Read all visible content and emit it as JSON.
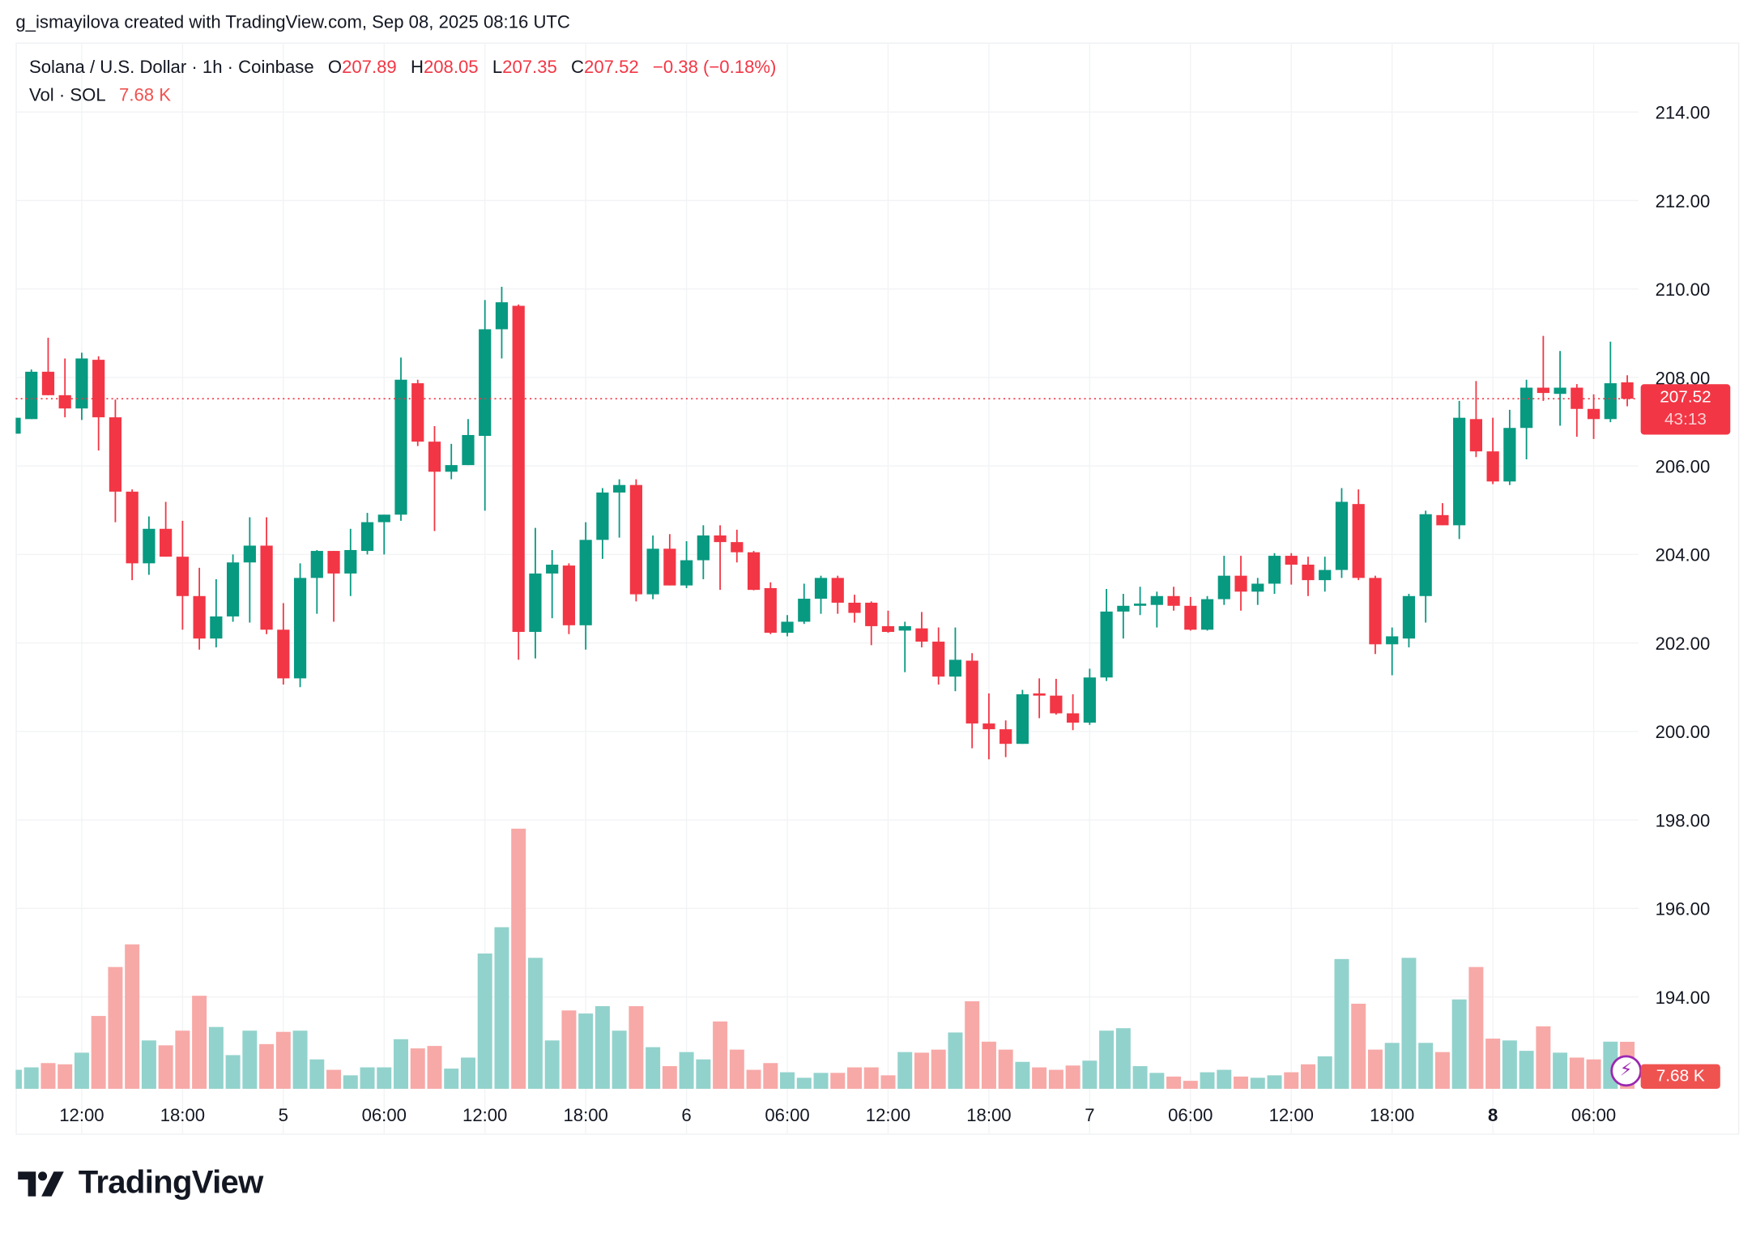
{
  "header": {
    "credit": "g_ismayilova created with TradingView.com, Sep 08, 2025 08:16 UTC"
  },
  "legend": {
    "symbol": "Solana / U.S. Dollar · 1h · Coinbase",
    "o_label": "O",
    "o": "207.89",
    "h_label": "H",
    "h": "208.05",
    "l_label": "L",
    "l": "207.35",
    "c_label": "C",
    "c": "207.52",
    "change": "−0.38 (−0.18%)",
    "vol_label": "Vol · SOL",
    "vol": "7.68 K"
  },
  "price_badge": {
    "price": "207.52",
    "countdown": "43:13"
  },
  "volume_badge": {
    "value": "7.68 K",
    "icon": "lightning-bolt-icon"
  },
  "logo": {
    "text": "TradingView"
  },
  "colors": {
    "up": "#089981",
    "down": "#f23645",
    "vol_up": "#92d2cc",
    "vol_down": "#f7a9a7",
    "last_price_line": "#f23645"
  },
  "chart_data": {
    "type": "candlestick",
    "title": "Solana / U.S. Dollar · 1h · Coinbase",
    "ylim": [
      193,
      215.5
    ],
    "y_ticks": [
      "214.00",
      "212.00",
      "210.00",
      "208.00",
      "206.00",
      "204.00",
      "202.00",
      "200.00",
      "198.00",
      "196.00",
      "194.00"
    ],
    "x_ticks": [
      {
        "label": "12:00",
        "bar": 4
      },
      {
        "label": "18:00",
        "bar": 10
      },
      {
        "label": "5",
        "bar": 16,
        "bold": false
      },
      {
        "label": "06:00",
        "bar": 22
      },
      {
        "label": "12:00",
        "bar": 28
      },
      {
        "label": "18:00",
        "bar": 34
      },
      {
        "label": "6",
        "bar": 40
      },
      {
        "label": "06:00",
        "bar": 46
      },
      {
        "label": "12:00",
        "bar": 52
      },
      {
        "label": "18:00",
        "bar": 58
      },
      {
        "label": "7",
        "bar": 64
      },
      {
        "label": "06:00",
        "bar": 70
      },
      {
        "label": "12:00",
        "bar": 76
      },
      {
        "label": "18:00",
        "bar": 82
      },
      {
        "label": "8",
        "bar": 88,
        "bold": true
      },
      {
        "label": "06:00",
        "bar": 94
      }
    ],
    "last_price": 207.52,
    "volume_unit": "K SOL",
    "candles_ohlc": [
      [
        206.73,
        207.1,
        206.7,
        207.09
      ],
      [
        207.06,
        208.18,
        207.06,
        208.13
      ],
      [
        208.13,
        208.9,
        207.6,
        207.6
      ],
      [
        207.6,
        208.43,
        207.1,
        207.3
      ],
      [
        207.3,
        208.56,
        207.04,
        208.43
      ],
      [
        208.4,
        208.48,
        206.35,
        207.1
      ],
      [
        207.1,
        207.5,
        204.73,
        205.42
      ],
      [
        205.42,
        205.47,
        203.42,
        203.8
      ],
      [
        203.8,
        204.86,
        203.54,
        204.58
      ],
      [
        204.58,
        205.19,
        203.95,
        203.95
      ],
      [
        203.95,
        204.76,
        202.3,
        203.06
      ],
      [
        203.06,
        203.7,
        201.85,
        202.1
      ],
      [
        202.1,
        203.44,
        201.9,
        202.6
      ],
      [
        202.6,
        204.0,
        202.48,
        203.82
      ],
      [
        203.82,
        204.84,
        202.46,
        204.2
      ],
      [
        204.2,
        204.84,
        202.2,
        202.3
      ],
      [
        202.3,
        202.9,
        201.06,
        201.2
      ],
      [
        201.2,
        203.8,
        201.0,
        203.47
      ],
      [
        203.47,
        204.1,
        202.66,
        204.08
      ],
      [
        204.08,
        204.08,
        202.48,
        203.57
      ],
      [
        203.57,
        204.58,
        203.06,
        204.1
      ],
      [
        204.08,
        204.94,
        204.0,
        204.73
      ],
      [
        204.73,
        204.9,
        204.0,
        204.9
      ],
      [
        204.9,
        208.45,
        204.76,
        207.95
      ],
      [
        207.87,
        207.95,
        206.45,
        206.55
      ],
      [
        206.55,
        206.9,
        204.53,
        205.87
      ],
      [
        205.87,
        206.5,
        205.7,
        206.02
      ],
      [
        206.02,
        207.06,
        206.02,
        206.7
      ],
      [
        206.68,
        209.75,
        204.99,
        209.09
      ],
      [
        209.09,
        210.05,
        208.43,
        209.7
      ],
      [
        209.62,
        209.65,
        201.62,
        202.25
      ],
      [
        202.25,
        204.6,
        201.65,
        203.57
      ],
      [
        203.57,
        204.1,
        202.56,
        203.77
      ],
      [
        203.75,
        203.8,
        202.2,
        202.4
      ],
      [
        202.4,
        204.73,
        201.85,
        204.33
      ],
      [
        204.33,
        205.5,
        203.9,
        205.4
      ],
      [
        205.4,
        205.7,
        204.38,
        205.57
      ],
      [
        205.57,
        205.7,
        202.94,
        203.1
      ],
      [
        203.1,
        204.43,
        202.99,
        204.13
      ],
      [
        204.13,
        204.46,
        203.3,
        203.3
      ],
      [
        203.3,
        204.3,
        203.24,
        203.87
      ],
      [
        203.87,
        204.66,
        203.44,
        204.43
      ],
      [
        204.43,
        204.66,
        203.2,
        204.28
      ],
      [
        204.28,
        204.56,
        203.82,
        204.05
      ],
      [
        204.05,
        204.08,
        203.19,
        203.2
      ],
      [
        203.24,
        203.37,
        202.2,
        202.23
      ],
      [
        202.23,
        202.63,
        202.15,
        202.48
      ],
      [
        202.48,
        203.34,
        202.43,
        203.0
      ],
      [
        203.0,
        203.52,
        202.66,
        203.47
      ],
      [
        203.47,
        203.52,
        202.66,
        202.91
      ],
      [
        202.91,
        203.09,
        202.46,
        202.68
      ],
      [
        202.91,
        202.94,
        201.95,
        202.38
      ],
      [
        202.38,
        202.73,
        202.23,
        202.25
      ],
      [
        202.28,
        202.48,
        201.34,
        202.38
      ],
      [
        202.33,
        202.7,
        201.9,
        202.03
      ],
      [
        202.03,
        202.35,
        201.06,
        201.24
      ],
      [
        201.24,
        202.35,
        200.91,
        201.62
      ],
      [
        201.6,
        201.77,
        199.62,
        200.18
      ],
      [
        200.18,
        200.86,
        199.37,
        200.05
      ],
      [
        200.05,
        200.25,
        199.42,
        199.72
      ],
      [
        199.72,
        200.94,
        199.72,
        200.84
      ],
      [
        200.86,
        201.2,
        200.3,
        200.81
      ],
      [
        200.81,
        201.19,
        200.38,
        200.41
      ],
      [
        200.41,
        200.84,
        200.03,
        200.2
      ],
      [
        200.2,
        201.42,
        200.15,
        201.22
      ],
      [
        201.22,
        203.22,
        201.14,
        202.71
      ],
      [
        202.71,
        203.11,
        202.1,
        202.84
      ],
      [
        202.84,
        203.27,
        202.63,
        202.89
      ],
      [
        202.86,
        203.16,
        202.35,
        203.06
      ],
      [
        203.06,
        203.27,
        202.73,
        202.84
      ],
      [
        202.84,
        203.04,
        202.28,
        202.3
      ],
      [
        202.3,
        203.06,
        202.28,
        202.99
      ],
      [
        202.99,
        203.97,
        202.86,
        203.52
      ],
      [
        203.52,
        203.97,
        202.73,
        203.16
      ],
      [
        203.16,
        203.47,
        202.86,
        203.34
      ],
      [
        203.34,
        204.03,
        203.11,
        203.97
      ],
      [
        203.97,
        204.03,
        203.32,
        203.77
      ],
      [
        203.77,
        203.95,
        203.06,
        203.42
      ],
      [
        203.42,
        203.95,
        203.16,
        203.65
      ],
      [
        203.65,
        205.5,
        203.47,
        205.19
      ],
      [
        205.14,
        205.47,
        203.42,
        203.47
      ],
      [
        203.47,
        203.52,
        201.75,
        201.97
      ],
      [
        201.97,
        202.35,
        201.27,
        202.15
      ],
      [
        202.1,
        203.11,
        201.9,
        203.06
      ],
      [
        203.06,
        204.99,
        202.46,
        204.91
      ],
      [
        204.89,
        205.16,
        204.66,
        204.66
      ],
      [
        204.66,
        207.47,
        204.35,
        207.09
      ],
      [
        207.06,
        207.92,
        206.2,
        206.33
      ],
      [
        206.33,
        207.09,
        205.59,
        205.65
      ],
      [
        205.65,
        207.27,
        205.57,
        206.86
      ],
      [
        206.86,
        207.95,
        206.15,
        207.77
      ],
      [
        207.77,
        208.94,
        207.47,
        207.65
      ],
      [
        207.63,
        208.6,
        206.91,
        207.77
      ],
      [
        207.77,
        207.85,
        206.66,
        207.29
      ],
      [
        207.29,
        207.62,
        206.61,
        207.06
      ],
      [
        207.06,
        208.81,
        206.99,
        207.87
      ],
      [
        207.89,
        208.05,
        207.35,
        207.52
      ]
    ],
    "volumes_k": [
      3.1,
      3.5,
      4.2,
      4.0,
      5.9,
      11.9,
      19.9,
      23.6,
      7.9,
      7.1,
      9.5,
      15.2,
      10.1,
      5.5,
      9.5,
      7.3,
      9.3,
      9.5,
      4.8,
      3.1,
      2.2,
      3.5,
      3.5,
      8.1,
      6.6,
      7.0,
      3.3,
      5.1,
      22.1,
      26.4,
      42.5,
      21.4,
      7.9,
      12.8,
      12.3,
      13.5,
      9.5,
      13.5,
      6.8,
      3.7,
      6.0,
      4.8,
      11.0,
      6.4,
      3.1,
      4.2,
      2.7,
      1.8,
      2.6,
      2.6,
      3.5,
      3.5,
      2.2,
      6.0,
      5.9,
      6.4,
      9.2,
      14.3,
      7.7,
      6.4,
      4.4,
      3.5,
      3.1,
      3.8,
      4.6,
      9.5,
      9.9,
      3.7,
      2.6,
      2.0,
      1.3,
      2.7,
      3.1,
      2.0,
      1.8,
      2.2,
      2.7,
      4.0,
      5.3,
      21.2,
      13.9,
      6.4,
      7.5,
      21.4,
      7.5,
      6.0,
      14.6,
      19.9,
      8.2,
      7.9,
      6.2,
      10.2,
      5.9,
      5.1,
      4.8,
      7.7,
      7.68
    ]
  }
}
